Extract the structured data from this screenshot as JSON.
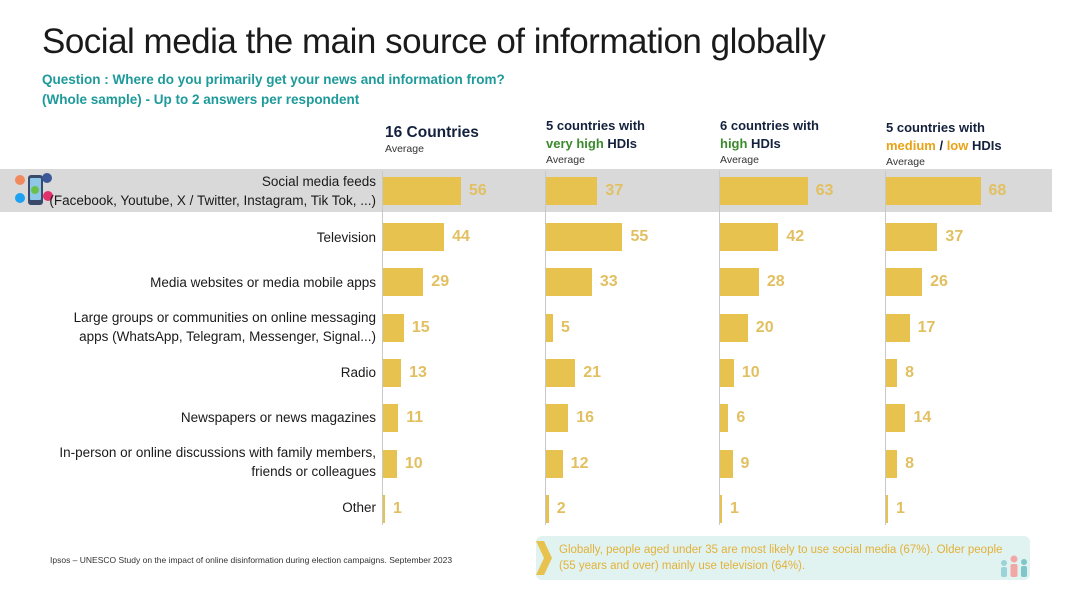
{
  "title": "Social media the main source of information globally",
  "question_line1": "Question : Where do you primarily get your news and information from?",
  "question_line2": "(Whole sample) - Up to 2 answers per respondent",
  "columns": [
    {
      "line1": "16 Countries",
      "avg": "Average"
    },
    {
      "line1": "5 countries with",
      "line2_a": "very high",
      "line2_b": " HDIs",
      "avg": "Average"
    },
    {
      "line1": "6 countries with",
      "line2_a": "high",
      "line2_b": " HDIs",
      "avg": "Average"
    },
    {
      "line1": "5 countries with",
      "line2_a": "medium",
      "line2_sep": " / ",
      "line2_c": "low",
      "line2_b": " HDIs",
      "avg": "Average"
    }
  ],
  "rows": [
    {
      "label": [
        "Social media feeds",
        "(Facebook, Youtube, X / Twitter, Instagram, Tik Tok, ...)"
      ]
    },
    {
      "label": [
        "Television"
      ]
    },
    {
      "label": [
        "Media websites or media mobile apps"
      ]
    },
    {
      "label": [
        "Large groups or communities on online messaging",
        "apps (WhatsApp, Telegram, Messenger, Signal...)"
      ]
    },
    {
      "label": [
        "Radio"
      ]
    },
    {
      "label": [
        "Newspapers or news magazines"
      ]
    },
    {
      "label": [
        "In-person or online discussions with family members,",
        "friends or colleagues"
      ]
    },
    {
      "label": [
        "Other"
      ]
    }
  ],
  "chart_data": {
    "type": "bar",
    "orientation": "horizontal",
    "title": "Social media the main source of information globally",
    "categories": [
      "Social media feeds (Facebook, Youtube, X / Twitter, Instagram, Tik Tok, ...)",
      "Television",
      "Media websites or media mobile apps",
      "Large groups or communities on online messaging apps (WhatsApp, Telegram, Messenger, Signal...)",
      "Radio",
      "Newspapers or news magazines",
      "In-person or online discussions with family members, friends or colleagues",
      "Other"
    ],
    "series": [
      {
        "name": "16 Countries Average",
        "values": [
          56,
          44,
          29,
          15,
          13,
          11,
          10,
          1
        ]
      },
      {
        "name": "5 countries with very high HDIs Average",
        "values": [
          37,
          55,
          33,
          5,
          21,
          16,
          12,
          2
        ]
      },
      {
        "name": "6 countries with high HDIs Average",
        "values": [
          63,
          42,
          28,
          20,
          10,
          6,
          9,
          1
        ]
      },
      {
        "name": "5 countries with medium / low HDIs Average",
        "values": [
          68,
          37,
          26,
          17,
          8,
          14,
          8,
          1
        ]
      }
    ],
    "highlighted_category": 0,
    "colors": {
      "bar": "#e8c24e",
      "value_label": "#e2c061",
      "highlight_row": "#d9d9d9"
    }
  },
  "source": "Ipsos – UNESCO Study on the impact of online disinformation during election campaigns. September 2023",
  "note": "Globally, people aged under 35 are most likely to use social media (67%). Older people (55 years and over) mainly use television (64%)."
}
